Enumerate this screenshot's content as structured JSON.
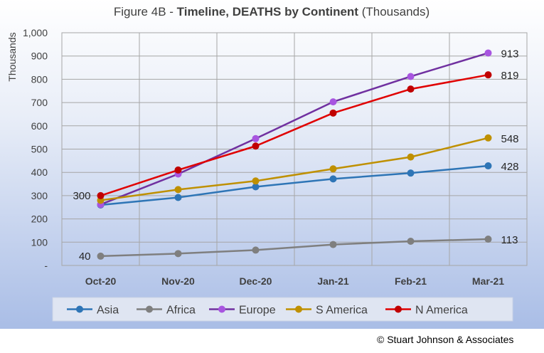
{
  "figure": {
    "prefix": "Figure 4B - ",
    "bold": "Timeline, DEATHS by Continent",
    "suffix": " (Thousands)",
    "copyright": "© Stuart Johnson & Associates"
  },
  "colors": {
    "background_top": "#ffffff",
    "background_bottom": "#a9bde6",
    "legend_bg": "#dfe5f2"
  },
  "chart_data": {
    "type": "line",
    "title": "Figure 4B - Timeline, DEATHS by Continent (Thousands)",
    "ylabel": "Thousands",
    "xlabel": "",
    "categories": [
      "Oct-20",
      "Nov-20",
      "Dec-20",
      "Jan-21",
      "Feb-21",
      "Mar-21"
    ],
    "ylim": [
      0,
      1000
    ],
    "yticks": [
      0,
      100,
      200,
      300,
      400,
      500,
      600,
      700,
      800,
      900,
      1000
    ],
    "ytick_labels": [
      "-",
      "100",
      "200",
      "300",
      "400",
      "500",
      "600",
      "700",
      "800",
      "900",
      "1,000"
    ],
    "grid": true,
    "legend_position": "bottom",
    "series": [
      {
        "name": "Asia",
        "color": "#2e75b6",
        "values": [
          260,
          292,
          338,
          372,
          397,
          428
        ]
      },
      {
        "name": "Africa",
        "color": "#7f7f7f",
        "values": [
          40,
          51,
          66,
          90,
          104,
          113
        ]
      },
      {
        "name": "Europe",
        "color": "#7030a0",
        "marker_color": "#a855e0",
        "values": [
          262,
          393,
          545,
          703,
          812,
          913
        ]
      },
      {
        "name": "S America",
        "color": "#bf9000",
        "values": [
          280,
          326,
          363,
          415,
          466,
          548
        ]
      },
      {
        "name": "N America",
        "color": "#e00000",
        "marker_color": "#c00000",
        "values": [
          300,
          410,
          513,
          655,
          758,
          819
        ]
      }
    ],
    "annotations": [
      {
        "text": "300",
        "series": "N America",
        "index": 0,
        "side": "left"
      },
      {
        "text": "40",
        "series": "Africa",
        "index": 0,
        "side": "left"
      },
      {
        "text": "913",
        "series": "Europe",
        "index": 5,
        "side": "right"
      },
      {
        "text": "819",
        "series": "N America",
        "index": 5,
        "side": "right"
      },
      {
        "text": "548",
        "series": "S America",
        "index": 5,
        "side": "right"
      },
      {
        "text": "428",
        "series": "Asia",
        "index": 5,
        "side": "right"
      },
      {
        "text": "113",
        "series": "Africa",
        "index": 5,
        "side": "right"
      }
    ]
  }
}
